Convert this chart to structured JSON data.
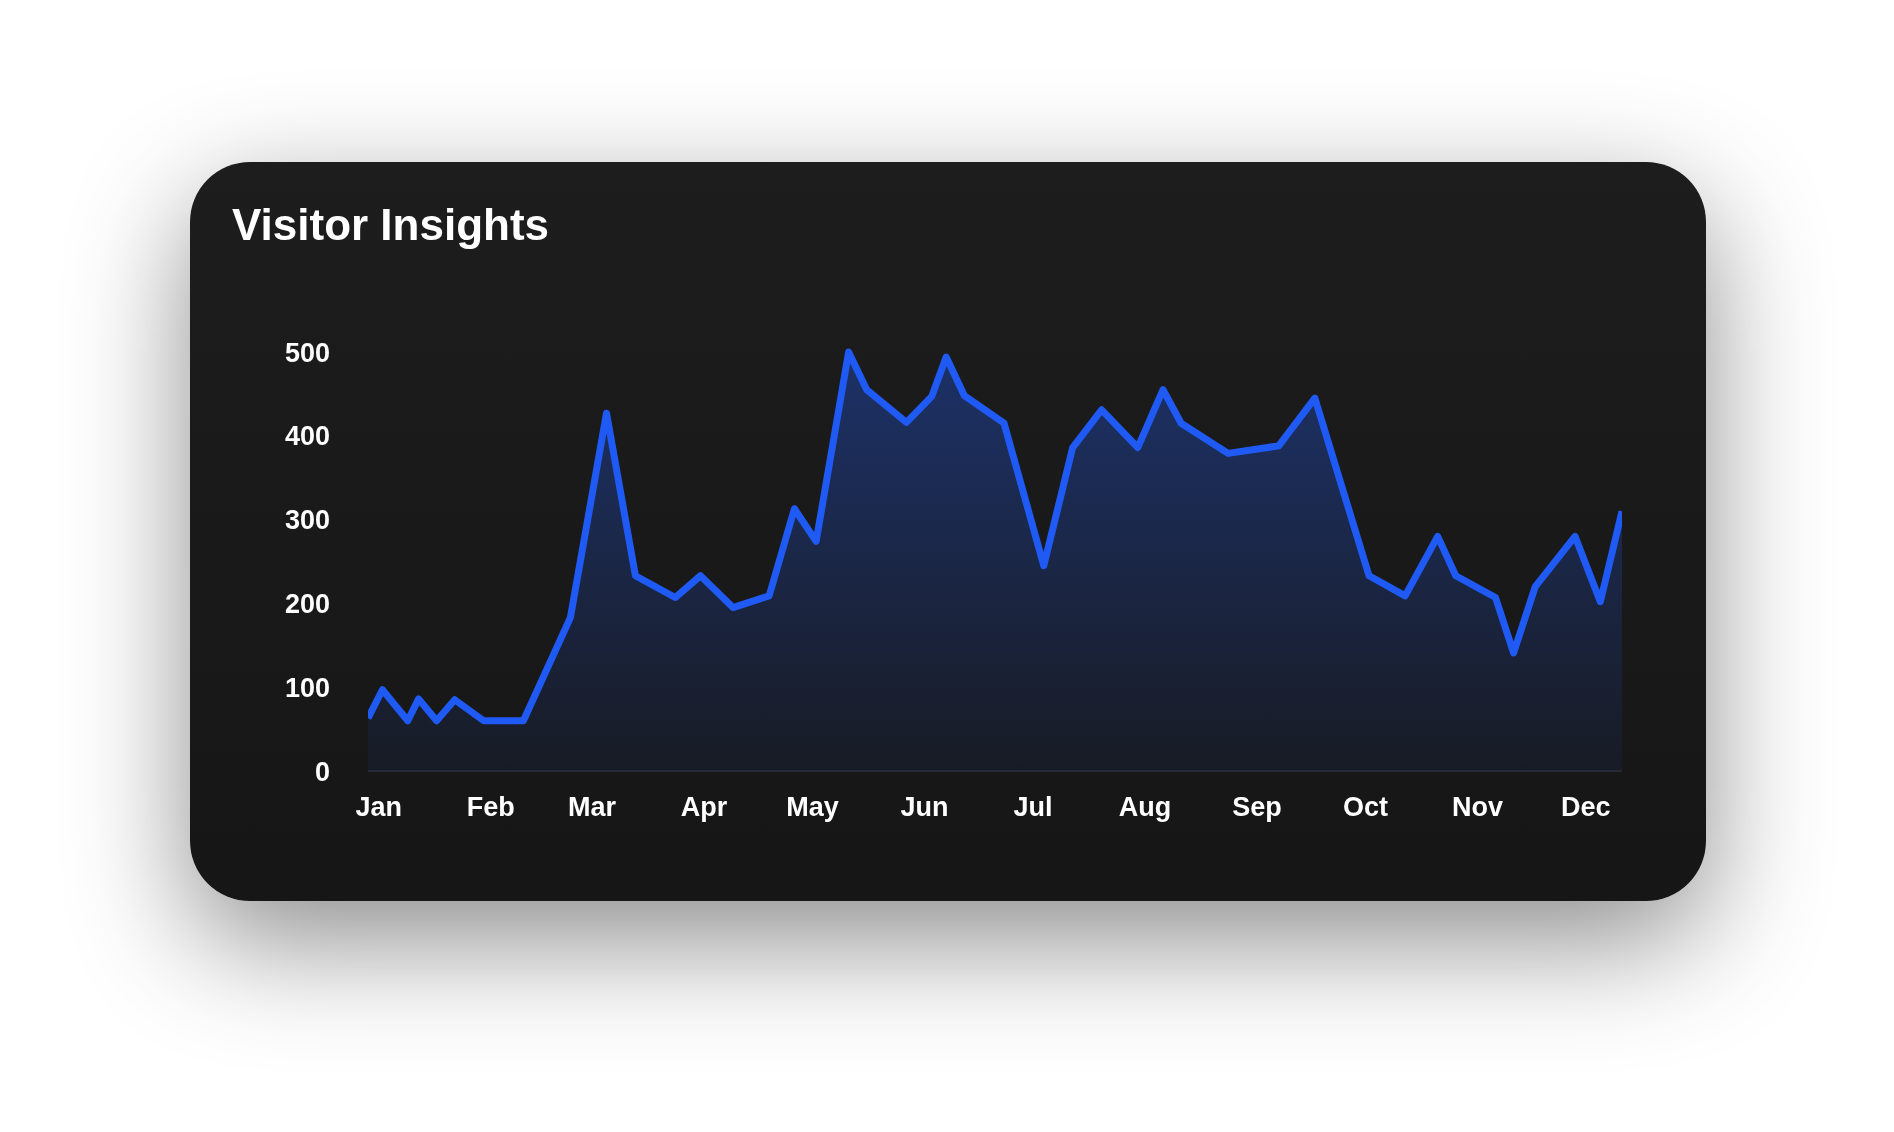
{
  "chart_data": {
    "type": "area",
    "title": "Visitor Insights",
    "x": [
      "--01-12",
      "--01-16",
      "--01-23",
      "--01-26",
      "--01-31",
      "--02-05",
      "--02-13",
      "--02-24",
      "--03-09",
      "--03-19",
      "--03-27",
      "--04-07",
      "--04-14",
      "--04-23",
      "--05-03",
      "--05-10",
      "--05-16",
      "--05-25",
      "--05-30",
      "--06-10",
      "--06-17",
      "--06-21",
      "--06-26",
      "--07-07",
      "--07-18",
      "--07-26",
      "--08-03",
      "--08-13",
      "--08-20",
      "--08-25",
      "--09-07",
      "--09-21",
      "--10-01",
      "--10-16",
      "--10-26",
      "--11-04",
      "--11-09",
      "--11-20",
      "--11-25",
      "--12-01",
      "--12-12",
      "--12-19",
      "--12-25"
    ],
    "series": [
      {
        "color": "#1f5af5",
        "values": [
          63,
          97,
          60,
          86,
          60,
          85,
          60,
          60,
          183,
          427,
          233,
          207,
          233,
          195,
          209,
          313,
          274,
          500,
          455,
          416,
          447,
          494,
          448,
          415,
          245,
          386,
          431,
          386,
          455,
          415,
          379,
          388,
          445,
          233,
          209,
          280,
          233,
          207,
          141,
          220,
          280,
          202,
          310
        ]
      }
    ],
    "xticks": [
      {
        "value": "--01-15",
        "label": "Jan"
      },
      {
        "value": "--02-15",
        "label": "Feb"
      },
      {
        "value": "--03-15",
        "label": "Mar"
      },
      {
        "value": "--04-15",
        "label": "Apr"
      },
      {
        "value": "--05-15",
        "label": "May"
      },
      {
        "value": "--06-15",
        "label": "Jun"
      },
      {
        "value": "--07-15",
        "label": "Jul"
      },
      {
        "value": "--08-15",
        "label": "Aug"
      },
      {
        "value": "--09-15",
        "label": "Sep"
      },
      {
        "value": "--10-15",
        "label": "Oct"
      },
      {
        "value": "--11-15",
        "label": "Nov"
      },
      {
        "value": "--12-15",
        "label": "Dec"
      }
    ],
    "xlim": [
      "--01-12",
      "--12-25"
    ],
    "ylim": [
      0,
      500
    ],
    "yticks": [
      0,
      100,
      200,
      300,
      400,
      500
    ],
    "grid": false,
    "legend": false,
    "marker": "none",
    "line_style": "solid"
  }
}
